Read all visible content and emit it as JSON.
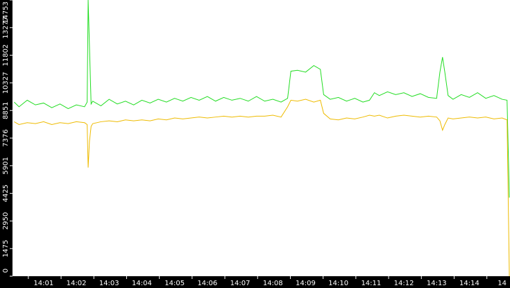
{
  "chart_data": {
    "type": "line",
    "x": [
      840.1,
      840.25,
      840.5,
      840.75,
      841,
      841.25,
      841.5,
      841.75,
      842,
      842.25,
      842.33,
      842.36,
      842.4,
      842.45,
      842.5,
      842.75,
      843,
      843.25,
      843.5,
      843.75,
      844,
      844.25,
      844.5,
      844.75,
      845,
      845.25,
      845.5,
      845.75,
      846,
      846.25,
      846.5,
      846.75,
      847,
      847.25,
      847.5,
      847.75,
      848,
      848.25,
      848.45,
      848.55,
      848.75,
      849,
      849.25,
      849.45,
      849.55,
      849.75,
      850,
      850.25,
      850.5,
      850.75,
      850.95,
      851.1,
      851.25,
      851.5,
      851.75,
      852,
      852.25,
      852.5,
      852.75,
      853,
      853.1,
      853.18,
      853.25,
      853.35,
      853.5,
      853.75,
      854,
      854.25,
      854.5,
      854.75,
      855,
      855.15,
      855.22
    ],
    "series": [
      {
        "color": "#22dd22",
        "values": [
          9300,
          9050,
          9400,
          9150,
          9250,
          9000,
          9200,
          8950,
          9150,
          9050,
          9300,
          14753,
          12300,
          9200,
          9350,
          9100,
          9450,
          9200,
          9350,
          9150,
          9400,
          9250,
          9450,
          9300,
          9500,
          9350,
          9550,
          9400,
          9600,
          9350,
          9550,
          9400,
          9500,
          9350,
          9600,
          9350,
          9450,
          9300,
          9500,
          10950,
          11000,
          10900,
          11250,
          11050,
          9700,
          9450,
          9550,
          9350,
          9500,
          9300,
          9400,
          9800,
          9650,
          9850,
          9700,
          9800,
          9600,
          9750,
          9550,
          9500,
          10900,
          11700,
          10900,
          9650,
          9450,
          9700,
          9550,
          9800,
          9500,
          9650,
          9450,
          9400,
          4200
        ]
      },
      {
        "color": "#eebb00",
        "values": [
          8250,
          8100,
          8200,
          8150,
          8250,
          8100,
          8200,
          8150,
          8250,
          8200,
          8100,
          5800,
          7200,
          8000,
          8150,
          8250,
          8300,
          8250,
          8350,
          8300,
          8350,
          8300,
          8400,
          8350,
          8450,
          8400,
          8450,
          8500,
          8450,
          8500,
          8550,
          8500,
          8550,
          8500,
          8550,
          8550,
          8600,
          8500,
          9050,
          9400,
          9350,
          9450,
          9300,
          9400,
          8700,
          8400,
          8350,
          8450,
          8400,
          8500,
          8600,
          8550,
          8600,
          8450,
          8550,
          8600,
          8550,
          8500,
          8550,
          8500,
          8300,
          7800,
          8100,
          8450,
          8400,
          8450,
          8500,
          8450,
          8500,
          8400,
          8450,
          8350,
          0
        ]
      }
    ],
    "xlim": [
      840.05,
      855.24
    ],
    "xticks": [
      {
        "value": 841,
        "label": "14:01"
      },
      {
        "value": 842,
        "label": "14:02"
      },
      {
        "value": 843,
        "label": "14:03"
      },
      {
        "value": 844,
        "label": "14:04"
      },
      {
        "value": 845,
        "label": "14:05"
      },
      {
        "value": 846,
        "label": "14:06"
      },
      {
        "value": 847,
        "label": "14:07"
      },
      {
        "value": 848,
        "label": "14:08"
      },
      {
        "value": 849,
        "label": "14:09"
      },
      {
        "value": 850,
        "label": "14:10"
      },
      {
        "value": 851,
        "label": "14:11"
      },
      {
        "value": 852,
        "label": "14:12"
      },
      {
        "value": 853,
        "label": "14:13"
      },
      {
        "value": 854,
        "label": "14:14"
      },
      {
        "value": 855,
        "label": "14"
      }
    ],
    "ylim": [
      0,
      14753
    ],
    "yticks": [
      0,
      1475,
      2950,
      4425,
      5901,
      7376,
      8851,
      10327,
      11802,
      13277,
      14753
    ]
  }
}
